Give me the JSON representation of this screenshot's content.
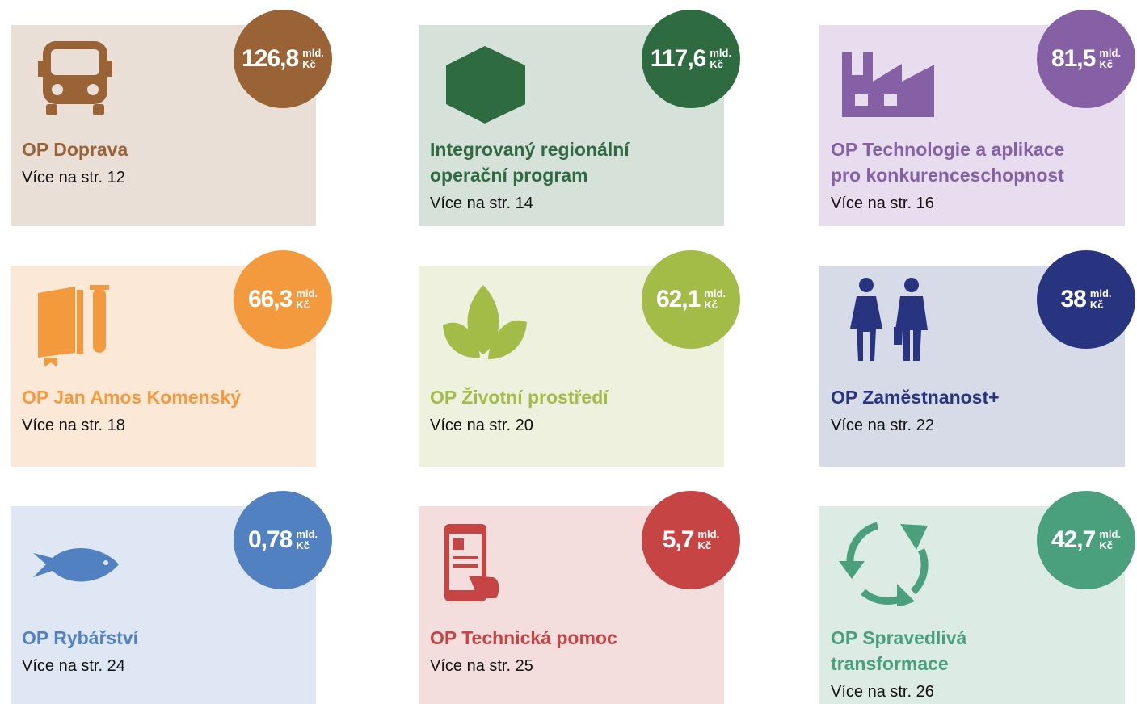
{
  "cards": [
    {
      "amount": "126,8",
      "unit_top": "mld.",
      "unit_bottom": "Kč",
      "title": [
        "OP Doprava"
      ],
      "link": "Více na str. 12",
      "bg": "#e9dfd6",
      "accent": "#9a6336"
    },
    {
      "amount": "117,6",
      "unit_top": "mld.",
      "unit_bottom": "Kč",
      "title": [
        "Integrovaný regionální",
        "operační program"
      ],
      "link": "Více na str. 14",
      "bg": "#d6e1da",
      "accent": "#2f6b41"
    },
    {
      "amount": "81,5",
      "unit_top": "mld.",
      "unit_bottom": "Kč",
      "title": [
        "OP Technologie a aplikace",
        "pro konkurenceschopnost"
      ],
      "link": "Více na str. 16",
      "bg": "#e7ddee",
      "accent": "#8560a5"
    },
    {
      "amount": "66,3",
      "unit_top": "mld.",
      "unit_bottom": "Kč",
      "title": [
        "OP Jan Amos Komenský"
      ],
      "link": "Více na str. 18",
      "bg": "#fbe8d7",
      "accent": "#f39a3f"
    },
    {
      "amount": "62,1",
      "unit_top": "mld.",
      "unit_bottom": "Kč",
      "title": [
        "OP Životní prostředí"
      ],
      "link": "Více na str. 20",
      "bg": "#edf1de",
      "accent": "#a3bc48"
    },
    {
      "amount": "38",
      "unit_top": "mld.",
      "unit_bottom": "Kč",
      "title": [
        "OP Zaměstnanost+"
      ],
      "link": "Více na str. 22",
      "bg": "#d7dae7",
      "accent": "#283480"
    },
    {
      "amount": "0,78",
      "unit_top": "mld.",
      "unit_bottom": "Kč",
      "title": [
        "OP Rybářství"
      ],
      "link": "Více na str. 24",
      "bg": "#dee7f3",
      "accent": "#5181c1"
    },
    {
      "amount": "5,7",
      "unit_top": "mld.",
      "unit_bottom": "Kč",
      "title": [
        "OP Technická pomoc"
      ],
      "link": "Více na str. 25",
      "bg": "#f4dddd",
      "accent": "#c74444"
    },
    {
      "amount": "42,7",
      "unit_top": "mld.",
      "unit_bottom": "Kč",
      "title": [
        "OP Spravedlivá",
        "transformace"
      ],
      "link": "Více na str. 26",
      "bg": "#dcebe4",
      "accent": "#4aa07d"
    }
  ]
}
